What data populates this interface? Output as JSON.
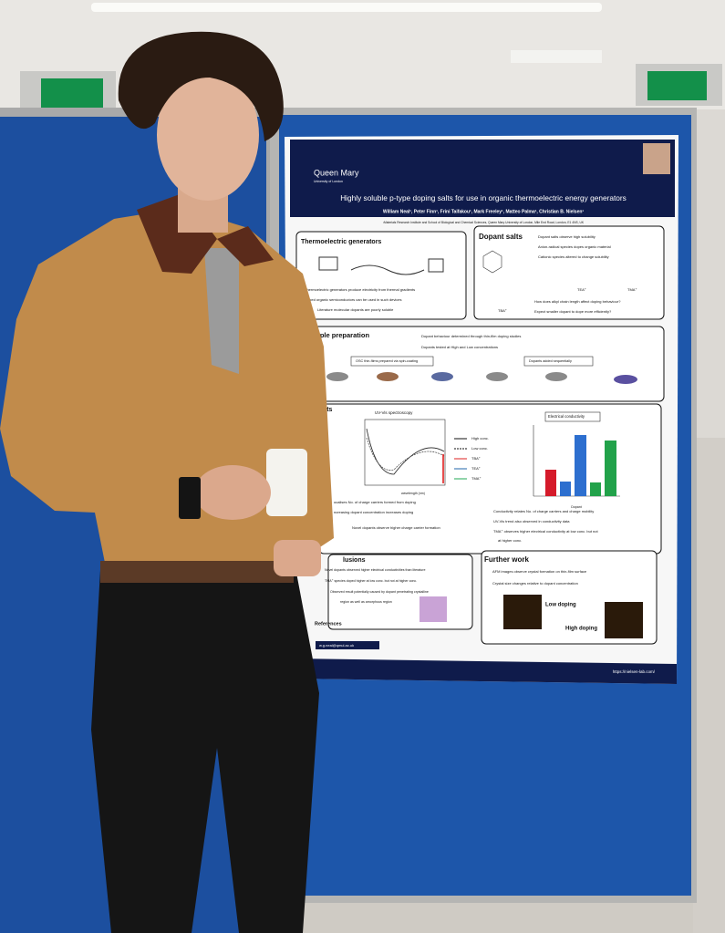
{
  "poster": {
    "header": {
      "institution": "Queen Mary",
      "institution_sub": "University of London",
      "title": "Highly soluble p-type doping salts for use in organic thermoelectric energy generators",
      "authors": "William Neal¹, Peter Finn¹, Frini Taifakou¹, Mark Freeley¹, Matteo Palma¹, Christian B. Nielsen¹",
      "affiliation": "¹Materials Research Institute and School of Biological and Chemical Sciences, Queen Mary University of London, Mile End Road, London, E1 4NS, UK"
    },
    "thermoelectric": {
      "heading": "Thermoelectric generators",
      "bullets": [
        "Thermoelectric generators produce electricity from thermal gradients",
        "Doped organic semiconductors can be used in such devices",
        "Literature molecular dopants are poorly soluble"
      ]
    },
    "dopant_salts": {
      "heading": "Dopant salts",
      "bullets": [
        "Dopant salts observe high solubility",
        "Anion-radical species dopes organic material",
        "Cationic species altered to change solubility",
        "How does alkyl chain length affect doping behaviour?",
        "Expect smaller dopant to dope more efficiently?"
      ],
      "labels": [
        "TEA⁺",
        "TMA⁺",
        "TBA⁺"
      ]
    },
    "sample_preparation": {
      "heading": "Sample preparation",
      "bullets": [
        "Dopant behaviour determined through thin-film doping studies",
        "Dopants tested at High and Low concentrations"
      ],
      "steps": [
        "OSC thin-films prepared via spin-coating",
        "Dopants added sequentially"
      ]
    },
    "results": {
      "heading": "ults",
      "uvvis_title": "UV-Vis spectroscopy",
      "uvvis_xlabel": "wavelength (nm)",
      "legend": [
        "High conc.",
        "Low conc.",
        "TBA⁺",
        "TEA⁺",
        "TMA⁺"
      ],
      "conductivity_title": "Electrical conductivity",
      "conductivity_xlabel": "Dopant",
      "left_bullets": [
        "ocalises No. of charge carriers formed from doping",
        "ncreasing dopant concentration increases doping",
        "Novel dopants observe higher charge carrier formation"
      ],
      "right_bullets": [
        "Conductivity relates No. of charge carriers and charge mobility",
        "UV-Vis trend also observed in conductivity data",
        "TMA⁺ observes higher electrical conductivity at low conc. but not",
        "at higher conc."
      ]
    },
    "conclusions": {
      "heading": "lusions",
      "bullets": [
        "Novel dopants observed higher electrical conductivities than literature",
        "TMA⁺ species doped higher at low conc. but not at higher conc.",
        "Observed result potentially caused by dopant penetrating crystalline",
        "region as well as amorphous region"
      ]
    },
    "further_work": {
      "heading": "Further work",
      "bullets": [
        "AFM images observe crystal formation on thin-film surface",
        "Crystal size changes relative to dopant concentration"
      ],
      "labels": [
        "Low doping",
        "High doping"
      ]
    },
    "footer": {
      "references": "References",
      "email": "w.g.neal@qmul.ac.uk",
      "url": "https://nielsen-lab.com/"
    }
  }
}
